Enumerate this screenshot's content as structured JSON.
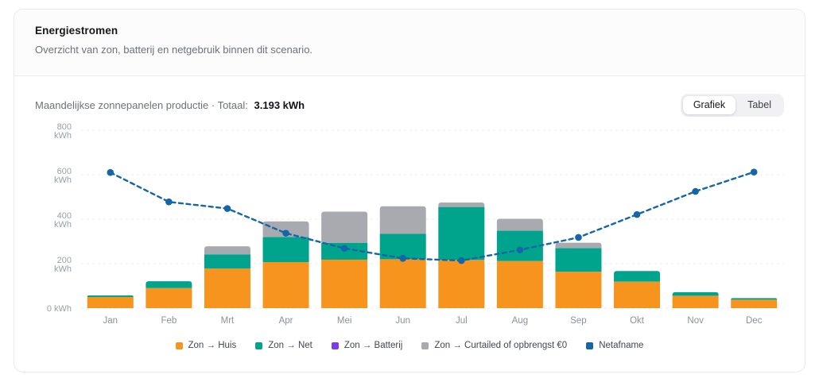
{
  "header": {
    "title": "Energiestromen",
    "subtitle": "Overzicht van zon, batterij en netgebruik binnen dit scenario."
  },
  "chart_header": {
    "label": "Maandelijkse zonnepanelen productie · Totaal:",
    "total": "3.193 kWh"
  },
  "toolbar": {
    "grafiek_label": "Grafiek",
    "tabel_label": "Tabel",
    "active": "Grafiek"
  },
  "chart_data": {
    "type": "bar",
    "stacked": true,
    "title": "Maandelijkse zonnepanelen productie",
    "total_label": "Totaal: 3.193 kWh",
    "xlabel": "",
    "ylabel": "kWh",
    "ylim": [
      0,
      800
    ],
    "grid": "horizontal-dashed",
    "legend_position": "bottom",
    "categories": [
      "Jan",
      "Feb",
      "Mrt",
      "Apr",
      "Mei",
      "Jun",
      "Jul",
      "Aug",
      "Sep",
      "Okt",
      "Nov",
      "Dec"
    ],
    "yticks": [
      {
        "value": 0,
        "label": "0 kWh"
      },
      {
        "value": 200,
        "label": "200 kWh"
      },
      {
        "value": 400,
        "label": "400 kWh"
      },
      {
        "value": 600,
        "label": "600 kWh"
      },
      {
        "value": 800,
        "label": "800 kWh"
      }
    ],
    "series": [
      {
        "name": "Zon → Huis",
        "type": "bar",
        "color": "#F7941D",
        "values": [
          50,
          90,
          178,
          207,
          218,
          220,
          217,
          212,
          164,
          119,
          56,
          38
        ]
      },
      {
        "name": "Zon → Net",
        "type": "bar",
        "color": "#00A48D",
        "values": [
          7,
          31,
          64,
          113,
          76,
          114,
          238,
          136,
          106,
          48,
          16,
          7
        ]
      },
      {
        "name": "Zon → Batterij",
        "type": "bar",
        "color": "#7C3BEA",
        "values": [
          0,
          0,
          0,
          0,
          0,
          0,
          0,
          0,
          0,
          0,
          0,
          0
        ]
      },
      {
        "name": "Zon → Curtailed of opbrengst €0",
        "type": "bar",
        "color": "#A9AAB0",
        "values": [
          0,
          0,
          36,
          70,
          140,
          124,
          20,
          54,
          24,
          0,
          0,
          0
        ]
      },
      {
        "name": "Netafname",
        "type": "line",
        "color": "#1565A9",
        "dashed": true,
        "values": [
          610,
          478,
          448,
          337,
          269,
          224,
          214,
          262,
          318,
          421,
          525,
          612
        ]
      }
    ]
  },
  "colors": {
    "zon_huis": "#F7941D",
    "zon_net": "#00A48D",
    "zon_batterij": "#7C3BEA",
    "zon_curtailed": "#A9AAB0",
    "netafname": "#1565A9",
    "gridline": "#e8e8ea"
  }
}
